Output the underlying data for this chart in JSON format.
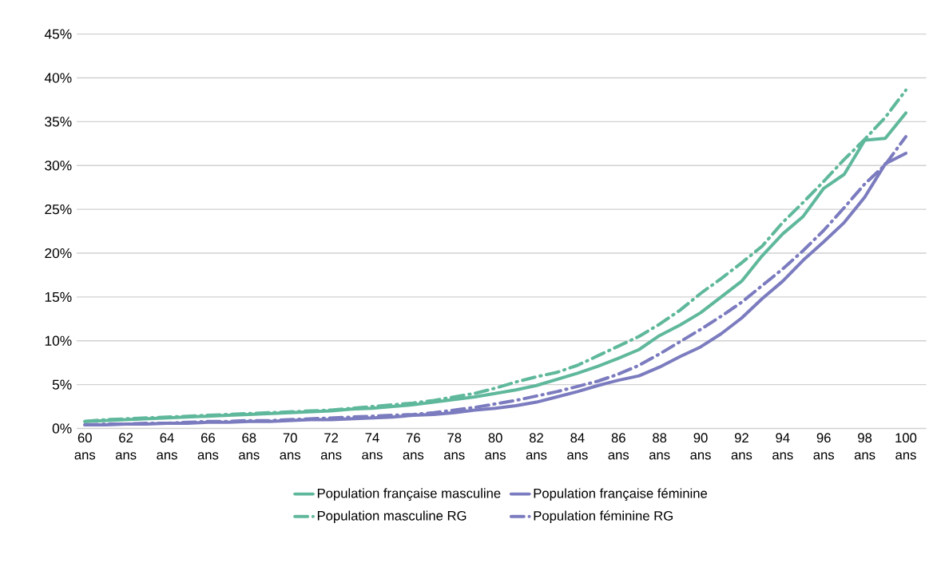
{
  "chart_data": {
    "type": "line",
    "categories": [
      "60 ans",
      null,
      "62 ans",
      null,
      "64 ans",
      null,
      "66 ans",
      null,
      "68 ans",
      null,
      "70 ans",
      null,
      "72 ans",
      null,
      "74 ans",
      null,
      "76 ans",
      null,
      "78 ans",
      null,
      "80 ans",
      null,
      "82 ans",
      null,
      "84 ans",
      null,
      "86 ans",
      null,
      "88 ans",
      null,
      "90 ans",
      null,
      "92 ans",
      null,
      "94 ans",
      null,
      "96 ans",
      null,
      "98 ans",
      null,
      "100 ans"
    ],
    "series": [
      {
        "name": "Population française masculine",
        "color": "#5fb89b",
        "line_style": "solid",
        "values": [
          0.8,
          0.9,
          1.0,
          1.1,
          1.2,
          1.3,
          1.4,
          1.5,
          1.6,
          1.7,
          1.8,
          1.9,
          2.0,
          2.2,
          2.3,
          2.5,
          2.7,
          3.0,
          3.3,
          3.6,
          4.0,
          4.4,
          4.9,
          5.6,
          6.3,
          7.1,
          8.0,
          9.0,
          10.6,
          11.8,
          13.2,
          15.0,
          16.8,
          19.7,
          22.2,
          24.2,
          27.4,
          29.0,
          32.9,
          33.1,
          36.0
        ]
      },
      {
        "name": "Population française féminine",
        "color": "#7b7bbf",
        "line_style": "solid",
        "values": [
          0.4,
          0.4,
          0.5,
          0.5,
          0.6,
          0.6,
          0.7,
          0.7,
          0.8,
          0.8,
          0.9,
          1.0,
          1.0,
          1.1,
          1.2,
          1.3,
          1.5,
          1.6,
          1.8,
          2.1,
          2.3,
          2.6,
          3.0,
          3.6,
          4.2,
          4.9,
          5.5,
          6.0,
          7.0,
          8.2,
          9.3,
          10.8,
          12.6,
          14.8,
          16.8,
          19.2,
          21.3,
          23.5,
          26.4,
          30.2,
          31.4
        ]
      },
      {
        "name": "Population masculine RG",
        "color": "#5fb89b",
        "line_style": "dashed",
        "values": [
          0.8,
          1.0,
          1.1,
          1.2,
          1.3,
          1.4,
          1.5,
          1.6,
          1.7,
          1.8,
          1.9,
          2.0,
          2.1,
          2.3,
          2.5,
          2.7,
          2.9,
          3.2,
          3.6,
          4.0,
          4.6,
          5.3,
          5.9,
          6.4,
          7.2,
          8.3,
          9.4,
          10.5,
          11.9,
          13.5,
          15.4,
          17.1,
          18.9,
          20.8,
          23.5,
          25.8,
          28.2,
          30.7,
          33.0,
          35.5,
          38.6
        ]
      },
      {
        "name": "Population féminine RG",
        "color": "#7b7bbf",
        "line_style": "dashed",
        "values": [
          0.4,
          0.5,
          0.5,
          0.6,
          0.6,
          0.7,
          0.8,
          0.8,
          0.9,
          0.9,
          1.0,
          1.1,
          1.2,
          1.3,
          1.4,
          1.5,
          1.6,
          1.8,
          2.1,
          2.4,
          2.8,
          3.2,
          3.7,
          4.2,
          4.8,
          5.4,
          6.2,
          7.2,
          8.5,
          9.9,
          11.3,
          12.8,
          14.4,
          16.3,
          18.2,
          20.3,
          22.6,
          25.2,
          27.9,
          30.1,
          33.3
        ]
      }
    ],
    "ylim": [
      0,
      45
    ],
    "yticks": [
      {
        "value": 0,
        "label": "0%"
      },
      {
        "value": 5,
        "label": "5%"
      },
      {
        "value": 10,
        "label": "10%"
      },
      {
        "value": 15,
        "label": "15%"
      },
      {
        "value": 20,
        "label": "20%"
      },
      {
        "value": 25,
        "label": "25%"
      },
      {
        "value": 30,
        "label": "30%"
      },
      {
        "value": 35,
        "label": "35%"
      },
      {
        "value": 40,
        "label": "40%"
      },
      {
        "value": 45,
        "label": "45%"
      }
    ],
    "grid": "y",
    "legend": "bottom"
  }
}
